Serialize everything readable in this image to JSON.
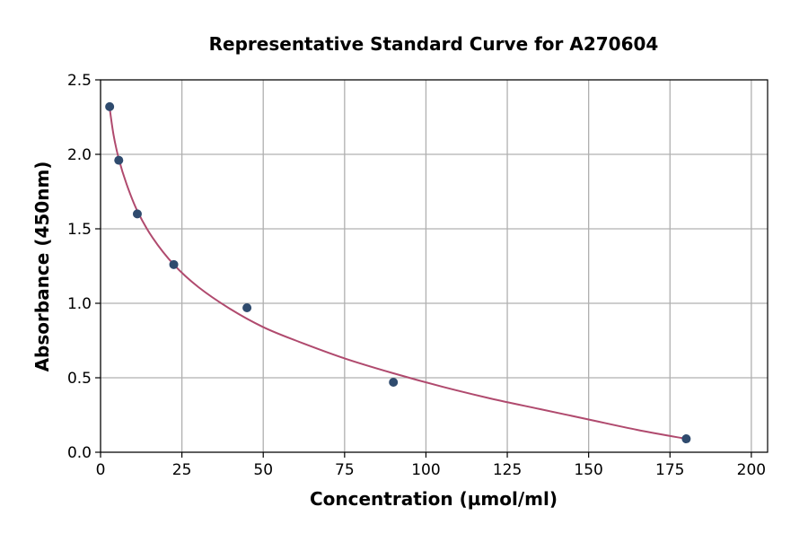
{
  "chart_data": {
    "type": "scatter",
    "title": "Representative Standard Curve for A270604",
    "xlabel": "Concentration (µmol/ml)",
    "ylabel": "Absorbance (450nm)",
    "xlim": [
      0,
      205
    ],
    "ylim": [
      0,
      2.5
    ],
    "xticks": [
      0,
      25,
      50,
      75,
      100,
      125,
      150,
      175,
      200
    ],
    "yticks": [
      0.0,
      0.5,
      1.0,
      1.5,
      2.0,
      2.5
    ],
    "xtick_labels": [
      "0",
      "25",
      "50",
      "75",
      "100",
      "125",
      "150",
      "175",
      "200"
    ],
    "ytick_labels": [
      "0.0",
      "0.5",
      "1.0",
      "1.5",
      "2.0",
      "2.5"
    ],
    "grid": true,
    "series": [
      {
        "kind": "points",
        "color": "#2f4b6e",
        "x": [
          2.8,
          5.6,
          11.3,
          22.5,
          45,
          90,
          180
        ],
        "y": [
          2.32,
          1.96,
          1.6,
          1.26,
          0.97,
          0.47,
          0.09
        ]
      },
      {
        "kind": "fit-line",
        "color": "#b04a6e",
        "x": [
          2.8,
          4,
          5.6,
          8,
          11.3,
          16,
          22.5,
          30,
          40,
          50,
          60,
          75,
          90,
          105,
          120,
          135,
          150,
          165,
          180
        ],
        "y": [
          2.31,
          2.13,
          1.97,
          1.8,
          1.62,
          1.44,
          1.26,
          1.11,
          0.96,
          0.84,
          0.75,
          0.63,
          0.53,
          0.44,
          0.36,
          0.29,
          0.22,
          0.15,
          0.09
        ]
      }
    ]
  }
}
